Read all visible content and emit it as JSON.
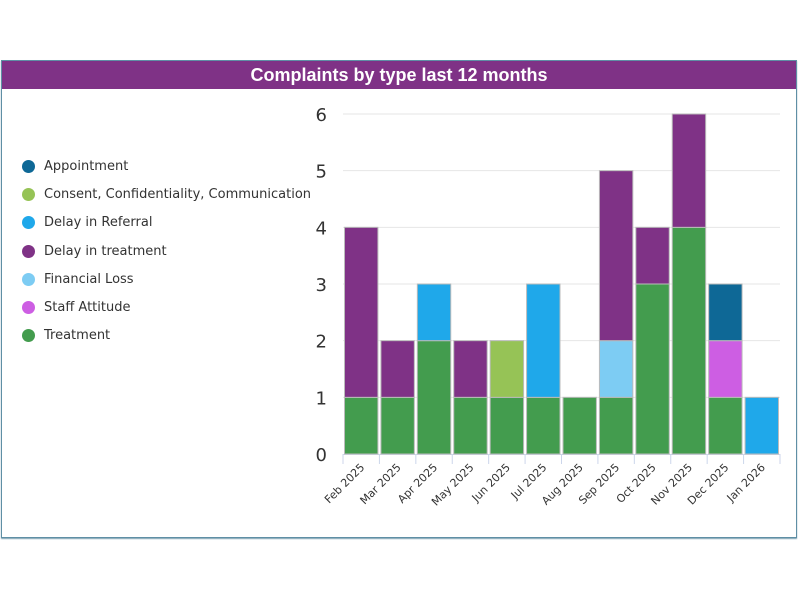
{
  "chart_data": {
    "type": "bar",
    "stacked": true,
    "title": "Complaints by type last 12 months",
    "xlabel": "",
    "ylabel": "",
    "ylim": [
      0,
      6
    ],
    "yticks": [
      0,
      1,
      2,
      3,
      4,
      5,
      6
    ],
    "grid": true,
    "legend_position": "left",
    "categories": [
      "Feb 2025",
      "Mar 2025",
      "Apr 2025",
      "May 2025",
      "Jun 2025",
      "Jul 2025",
      "Aug 2025",
      "Sep 2025",
      "Oct 2025",
      "Nov 2025",
      "Dec 2025",
      "Jan 2026"
    ],
    "series": [
      {
        "name": "Treatment",
        "color": "#439c4e",
        "values": [
          1,
          1,
          2,
          1,
          1,
          1,
          1,
          1,
          3,
          4,
          1,
          0
        ]
      },
      {
        "name": "Consent, Confidentiality, Communication",
        "color": "#96c356",
        "values": [
          0,
          0,
          0,
          0,
          1,
          0,
          0,
          0,
          0,
          0,
          0,
          0
        ]
      },
      {
        "name": "Delay in Referral",
        "color": "#1fa8ea",
        "values": [
          0,
          0,
          1,
          0,
          0,
          2,
          0,
          0,
          0,
          0,
          0,
          1
        ]
      },
      {
        "name": "Financial Loss",
        "color": "#7dccf3",
        "values": [
          0,
          0,
          0,
          0,
          0,
          0,
          0,
          1,
          0,
          0,
          0,
          0
        ]
      },
      {
        "name": "Staff Attitude",
        "color": "#cd5ee3",
        "values": [
          0,
          0,
          0,
          0,
          0,
          0,
          0,
          0,
          0,
          0,
          1,
          0
        ]
      },
      {
        "name": "Delay in treatment",
        "color": "#7f3286",
        "values": [
          3,
          1,
          0,
          1,
          0,
          0,
          0,
          3,
          1,
          2,
          0,
          0
        ]
      },
      {
        "name": "Appointment",
        "color": "#0e6896",
        "values": [
          0,
          0,
          0,
          0,
          0,
          0,
          0,
          0,
          0,
          0,
          1,
          0
        ]
      }
    ]
  },
  "legend": [
    {
      "label": "Appointment",
      "color": "#0e6896"
    },
    {
      "label": "Consent, Confidentiality, Communication",
      "color": "#96c356"
    },
    {
      "label": "Delay in Referral",
      "color": "#1fa8ea"
    },
    {
      "label": "Delay in treatment",
      "color": "#7f3286"
    },
    {
      "label": "Financial Loss",
      "color": "#7dccf3"
    },
    {
      "label": "Staff Attitude",
      "color": "#cd5ee3"
    },
    {
      "label": "Treatment",
      "color": "#439c4e"
    }
  ]
}
